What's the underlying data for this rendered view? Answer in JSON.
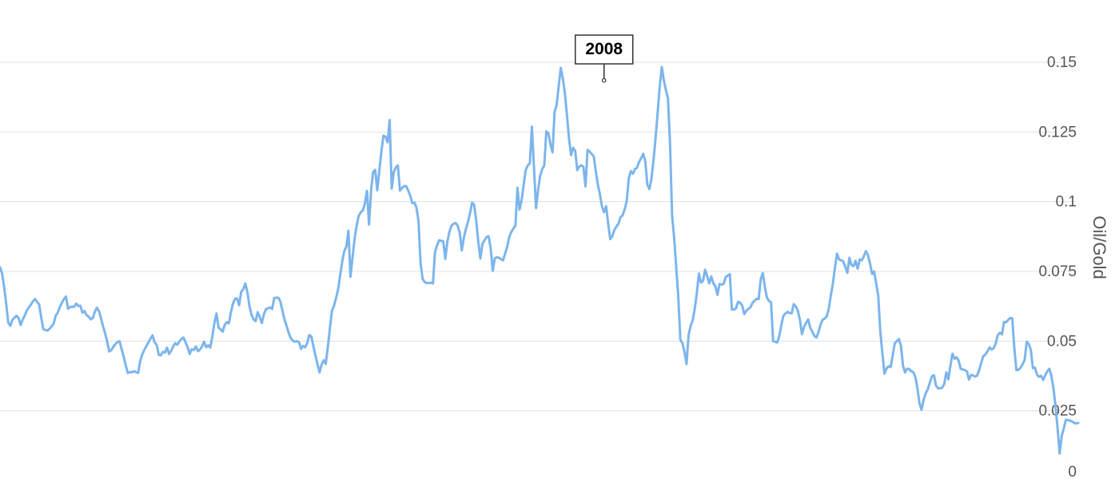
{
  "colors": {
    "series": "#7cb5ec",
    "gridline": "#e0e0e0",
    "tick_text": "#555555",
    "callout_border": "#333333"
  },
  "chart_data": {
    "type": "line",
    "title": "",
    "xlabel": "",
    "ylabel": "Oil/Gold",
    "ylim": [
      0,
      0.15
    ],
    "y_ticks": [
      "0",
      "0.025",
      "0.05",
      "0.075",
      "0.1",
      "0.125",
      "0.15"
    ],
    "y_tick_values": [
      0,
      0.025,
      0.05,
      0.075,
      0.1,
      0.125,
      0.15
    ],
    "y_axis_side": "right",
    "grid": true,
    "legend": "none",
    "annotations": [
      {
        "label": "2008",
        "x_index": 293,
        "y": 0.1435
      }
    ],
    "series": [
      {
        "name": "",
        "values": [
          0.0765,
          0.0744,
          0.0694,
          0.0635,
          0.0567,
          0.0555,
          0.0576,
          0.0584,
          0.0591,
          0.0583,
          0.0558,
          0.0577,
          0.0592,
          0.061,
          0.0621,
          0.0631,
          0.0643,
          0.0651,
          0.0641,
          0.0631,
          0.0585,
          0.0543,
          0.054,
          0.0538,
          0.0544,
          0.0553,
          0.0562,
          0.0591,
          0.0602,
          0.0622,
          0.0637,
          0.0651,
          0.066,
          0.0616,
          0.0622,
          0.0624,
          0.0623,
          0.0635,
          0.0626,
          0.0627,
          0.0602,
          0.0608,
          0.0593,
          0.0588,
          0.0578,
          0.0583,
          0.0605,
          0.062,
          0.0608,
          0.0582,
          0.0552,
          0.0528,
          0.0498,
          0.0463,
          0.0468,
          0.048,
          0.049,
          0.0497,
          0.05,
          0.0471,
          0.0444,
          0.0413,
          0.0386,
          0.0389,
          0.0389,
          0.0392,
          0.0389,
          0.0386,
          0.0428,
          0.0452,
          0.0469,
          0.0482,
          0.0496,
          0.0509,
          0.0521,
          0.0495,
          0.0487,
          0.0451,
          0.0449,
          0.0462,
          0.0459,
          0.0477,
          0.0454,
          0.0465,
          0.0481,
          0.0493,
          0.0487,
          0.0499,
          0.0508,
          0.0513,
          0.0496,
          0.0478,
          0.0454,
          0.0471,
          0.0468,
          0.0481,
          0.0464,
          0.047,
          0.0481,
          0.0498,
          0.0478,
          0.0485,
          0.0477,
          0.0517,
          0.0565,
          0.0599,
          0.0549,
          0.0542,
          0.0534,
          0.0558,
          0.0568,
          0.0564,
          0.0603,
          0.0635,
          0.0652,
          0.0653,
          0.0629,
          0.0677,
          0.0686,
          0.0707,
          0.0676,
          0.0625,
          0.0595,
          0.0578,
          0.0572,
          0.0604,
          0.0587,
          0.0565,
          0.0596,
          0.0615,
          0.0618,
          0.0621,
          0.0615,
          0.0654,
          0.0656,
          0.0656,
          0.0642,
          0.0609,
          0.0578,
          0.0555,
          0.053,
          0.0511,
          0.0502,
          0.0498,
          0.05,
          0.0497,
          0.0472,
          0.0483,
          0.0478,
          0.0493,
          0.0522,
          0.0517,
          0.0482,
          0.0449,
          0.0417,
          0.0388,
          0.0416,
          0.0432,
          0.0418,
          0.0478,
          0.0545,
          0.0608,
          0.0627,
          0.0654,
          0.0686,
          0.0736,
          0.0786,
          0.0823,
          0.0839,
          0.0896,
          0.0731,
          0.0801,
          0.0868,
          0.0915,
          0.095,
          0.0962,
          0.0969,
          0.0993,
          0.1039,
          0.0918,
          0.104,
          0.1107,
          0.1114,
          0.1041,
          0.1112,
          0.1181,
          0.1237,
          0.1233,
          0.1213,
          0.1293,
          0.1047,
          0.1106,
          0.1123,
          0.113,
          0.104,
          0.1049,
          0.1056,
          0.1056,
          0.104,
          0.1021,
          0.0995,
          0.0997,
          0.0979,
          0.093,
          0.0779,
          0.0723,
          0.0712,
          0.0708,
          0.0709,
          0.0709,
          0.0707,
          0.0819,
          0.0844,
          0.0862,
          0.086,
          0.0858,
          0.0795,
          0.0857,
          0.0892,
          0.0914,
          0.0921,
          0.0924,
          0.0914,
          0.0889,
          0.0825,
          0.0871,
          0.0903,
          0.0928,
          0.0959,
          0.0997,
          0.0989,
          0.0932,
          0.0856,
          0.0796,
          0.0849,
          0.0861,
          0.0874,
          0.0876,
          0.0833,
          0.0752,
          0.0797,
          0.0801,
          0.0799,
          0.0794,
          0.079,
          0.0814,
          0.0838,
          0.0873,
          0.0891,
          0.0904,
          0.0914,
          0.105,
          0.0972,
          0.1005,
          0.106,
          0.1114,
          0.113,
          0.1137,
          0.1269,
          0.1124,
          0.0977,
          0.1042,
          0.1093,
          0.1117,
          0.113,
          0.1252,
          0.1245,
          0.1206,
          0.1177,
          0.1322,
          0.1347,
          0.1415,
          0.148,
          0.1442,
          0.1389,
          0.131,
          0.1227,
          0.1167,
          0.1193,
          0.1182,
          0.1113,
          0.1126,
          0.1131,
          0.1125,
          0.1055,
          0.1186,
          0.118,
          0.1171,
          0.1163,
          0.1108,
          0.1061,
          0.1026,
          0.0983,
          0.0962,
          0.0984,
          0.0921,
          0.0866,
          0.0876,
          0.0899,
          0.0911,
          0.0921,
          0.0945,
          0.0951,
          0.0973,
          0.1002,
          0.1084,
          0.111,
          0.11,
          0.1117,
          0.1122,
          0.1143,
          0.1156,
          0.1172,
          0.1145,
          0.1061,
          0.1045,
          0.1083,
          0.1149,
          0.1229,
          0.1319,
          0.1412,
          0.1483,
          0.1435,
          0.14,
          0.137,
          0.121,
          0.095,
          0.0871,
          0.0766,
          0.066,
          0.0506,
          0.0492,
          0.0462,
          0.0418,
          0.0522,
          0.0555,
          0.0575,
          0.0616,
          0.0672,
          0.0742,
          0.071,
          0.0716,
          0.0756,
          0.0734,
          0.0707,
          0.0732,
          0.0708,
          0.0697,
          0.0666,
          0.0705,
          0.0703,
          0.0705,
          0.073,
          0.0735,
          0.074,
          0.0614,
          0.0613,
          0.0618,
          0.0641,
          0.0638,
          0.0628,
          0.0597,
          0.0609,
          0.0616,
          0.0621,
          0.0637,
          0.0645,
          0.0652,
          0.0651,
          0.0723,
          0.0744,
          0.0695,
          0.0656,
          0.0644,
          0.064,
          0.05,
          0.0498,
          0.0495,
          0.0518,
          0.0558,
          0.0591,
          0.0599,
          0.0605,
          0.0601,
          0.06,
          0.0633,
          0.0625,
          0.0609,
          0.0576,
          0.0525,
          0.0551,
          0.0566,
          0.0578,
          0.0548,
          0.0534,
          0.0519,
          0.0513,
          0.0532,
          0.0559,
          0.0577,
          0.0581,
          0.0588,
          0.0617,
          0.0664,
          0.0707,
          0.0764,
          0.0814,
          0.0793,
          0.079,
          0.0786,
          0.0767,
          0.0745,
          0.0799,
          0.0773,
          0.0769,
          0.0788,
          0.076,
          0.0793,
          0.079,
          0.0804,
          0.0823,
          0.0809,
          0.0778,
          0.0741,
          0.075,
          0.0707,
          0.0662,
          0.0533,
          0.0457,
          0.0383,
          0.0402,
          0.041,
          0.0407,
          0.0448,
          0.0493,
          0.05,
          0.0508,
          0.0484,
          0.0412,
          0.0388,
          0.0401,
          0.04,
          0.0392,
          0.0389,
          0.0371,
          0.0331,
          0.0277,
          0.0254,
          0.029,
          0.0313,
          0.0327,
          0.0351,
          0.0374,
          0.0378,
          0.0341,
          0.0331,
          0.0331,
          0.0333,
          0.0346,
          0.0388,
          0.0363,
          0.0412,
          0.0455,
          0.0437,
          0.0442,
          0.043,
          0.04,
          0.0399,
          0.0396,
          0.0392,
          0.0362,
          0.0379,
          0.0377,
          0.0373,
          0.0377,
          0.0397,
          0.0424,
          0.0447,
          0.0452,
          0.0464,
          0.0478,
          0.047,
          0.0475,
          0.0492,
          0.0522,
          0.053,
          0.0524,
          0.0569,
          0.0568,
          0.0576,
          0.0583,
          0.0582,
          0.0475,
          0.0396,
          0.0397,
          0.0405,
          0.0417,
          0.0432,
          0.0498,
          0.049,
          0.0469,
          0.0403,
          0.0405,
          0.038,
          0.0372,
          0.0376,
          0.0361,
          0.0378,
          0.0392,
          0.0401,
          0.0375,
          0.033,
          0.0265,
          0.0186,
          0.0097,
          0.0161,
          0.0187,
          0.0218,
          0.0217,
          0.0215,
          0.0212,
          0.0207,
          0.0205,
          0.0207
        ]
      }
    ]
  }
}
